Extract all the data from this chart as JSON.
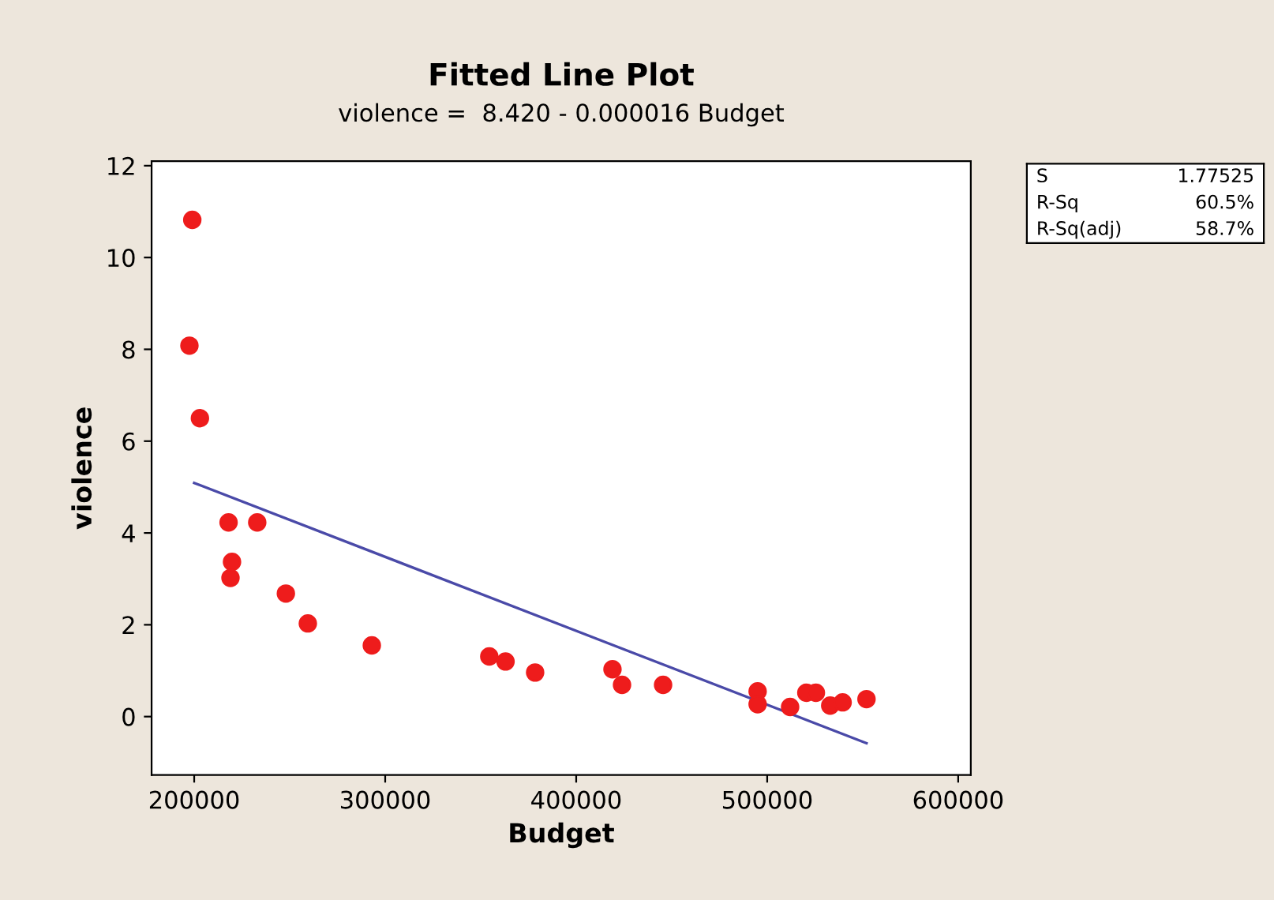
{
  "chart_data": {
    "type": "scatter",
    "title": "Fitted Line Plot",
    "subtitle": "violence =  8.420 - 0.000016 Budget",
    "xlabel": "Budget",
    "ylabel": "violence",
    "annotations": [
      "S\t1.77525",
      "R-Sq\t60.5%",
      "R-Sq(adj)\t58.7%"
    ],
    "xlim": [
      177700,
      606600
    ],
    "xticks": [
      200000,
      300000,
      400000,
      500000,
      600000
    ],
    "ylim": [
      -1.27,
      12.1
    ],
    "yticks": [
      0,
      2,
      4,
      6,
      8,
      10,
      12
    ],
    "grid": false,
    "legend": false,
    "series": [
      {
        "color": "#ee1c1c",
        "marker": "circle",
        "x": [
          197500,
          199000,
          203000,
          218000,
          233000,
          219800,
          219000,
          248000,
          259500,
          293000,
          354500,
          363000,
          378500,
          419000,
          424000,
          445500,
          495000,
          495000,
          512000,
          520500,
          525500,
          533000,
          539500,
          552000
        ],
        "values": [
          8.08,
          10.82,
          6.5,
          4.23,
          4.23,
          3.37,
          3.02,
          2.68,
          2.03,
          1.55,
          1.31,
          1.2,
          0.96,
          1.03,
          0.69,
          0.69,
          0.55,
          0.27,
          0.21,
          0.52,
          0.52,
          0.24,
          0.31,
          0.38
        ]
      },
      {
        "type": "line",
        "color": "#4a4aa8",
        "marker": "none",
        "line_style": "solid",
        "x": [
          200000,
          552000
        ],
        "values": [
          5.09,
          -0.58
        ]
      }
    ]
  }
}
